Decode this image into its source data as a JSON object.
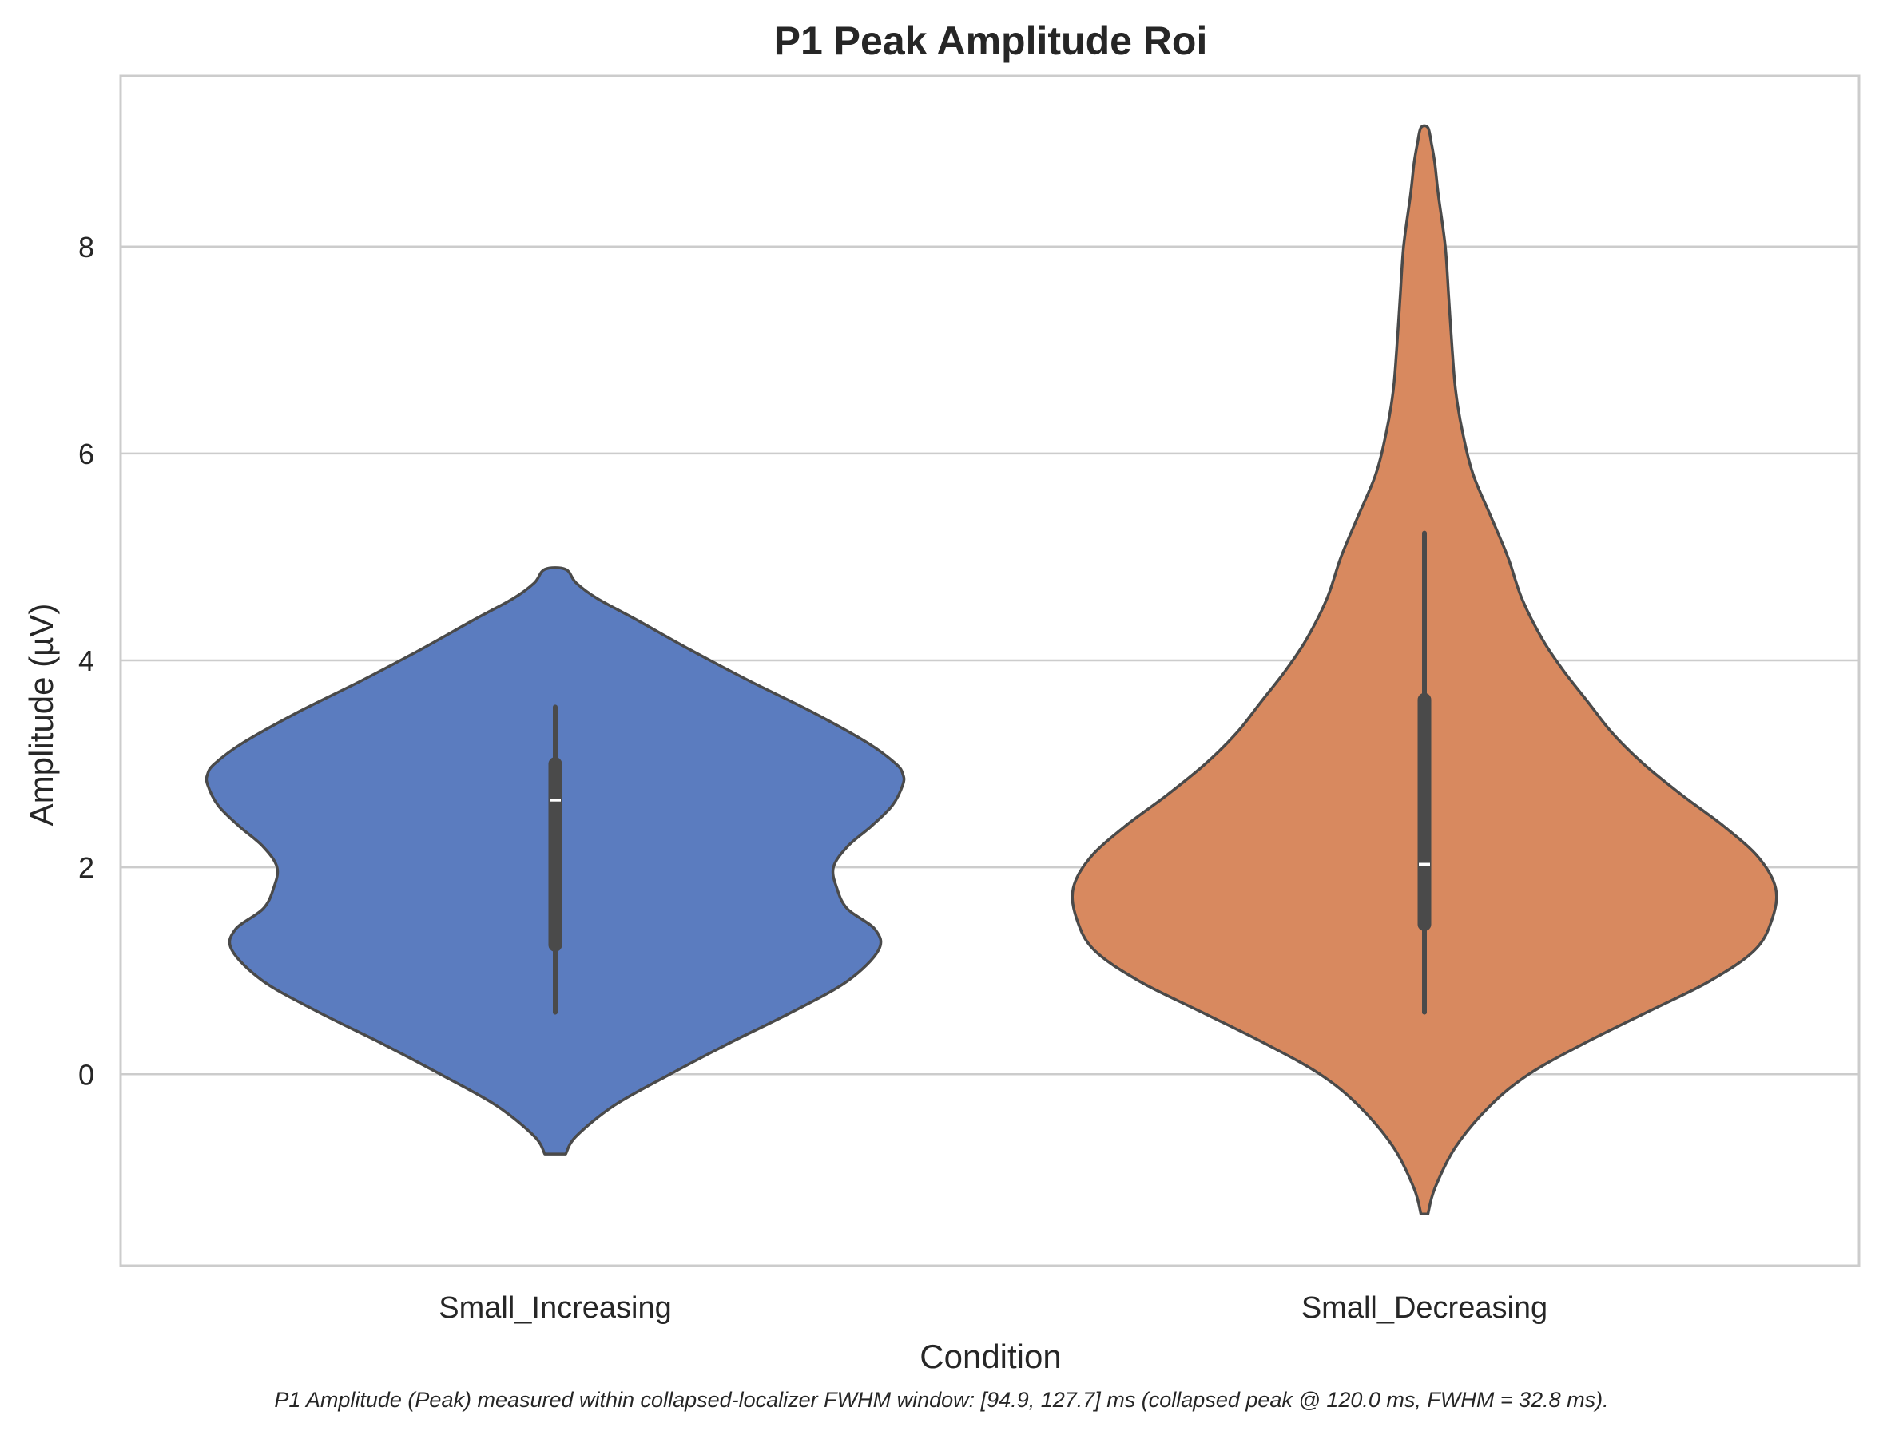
{
  "chart_data": {
    "type": "violin",
    "title": "P1 Peak Amplitude Roi",
    "xlabel": "Condition",
    "ylabel": "Amplitude (µV)",
    "caption": "P1 Amplitude (Peak) measured within collapsed-localizer FWHM window: [94.9, 127.7] ms (collapsed peak @ 120.0 ms, FWHM = 32.8 ms).",
    "ylim": [
      -1.85,
      9.65
    ],
    "yticks": [
      0,
      2,
      4,
      6,
      8
    ],
    "ytick_labels": [
      "0",
      "2",
      "4",
      "6",
      "8"
    ],
    "grid": true,
    "categories": [
      "Small_Increasing",
      "Small_Decreasing"
    ],
    "series": [
      {
        "name": "Small_Increasing",
        "color": "#5b7cbf",
        "median": 2.65,
        "q1": 1.25,
        "q3": 3.0,
        "whisker_low": 0.6,
        "whisker_high": 3.55,
        "density": {
          "y": [
            -0.77,
            -0.6,
            -0.3,
            0.0,
            0.3,
            0.6,
            0.9,
            1.2,
            1.4,
            1.6,
            1.8,
            2.0,
            2.2,
            2.4,
            2.6,
            2.8,
            2.9,
            3.0,
            3.2,
            3.5,
            3.8,
            4.1,
            4.4,
            4.6,
            4.75,
            4.88
          ],
          "width": [
            0.03,
            0.06,
            0.17,
            0.33,
            0.5,
            0.68,
            0.84,
            0.93,
            0.92,
            0.84,
            0.81,
            0.8,
            0.84,
            0.91,
            0.97,
            1.0,
            1.0,
            0.98,
            0.9,
            0.74,
            0.56,
            0.39,
            0.23,
            0.12,
            0.06,
            0.03
          ]
        }
      },
      {
        "name": "Small_Decreasing",
        "color": "#d8895f",
        "median": 2.03,
        "q1": 1.45,
        "q3": 3.62,
        "whisker_low": 0.6,
        "whisker_high": 5.23,
        "density": {
          "y": [
            -1.35,
            -1.1,
            -0.7,
            -0.3,
            0.0,
            0.3,
            0.6,
            0.9,
            1.2,
            1.5,
            1.8,
            2.1,
            2.4,
            2.7,
            3.0,
            3.3,
            3.6,
            3.9,
            4.2,
            4.6,
            5.0,
            5.4,
            5.8,
            6.2,
            6.6,
            7.0,
            7.5,
            8.0,
            8.5,
            8.8,
            9.0,
            9.15
          ],
          "width": [
            0.01,
            0.03,
            0.09,
            0.19,
            0.3,
            0.46,
            0.64,
            0.82,
            0.95,
            1.0,
            1.01,
            0.96,
            0.86,
            0.74,
            0.63,
            0.54,
            0.47,
            0.4,
            0.34,
            0.28,
            0.24,
            0.19,
            0.14,
            0.11,
            0.09,
            0.08,
            0.07,
            0.06,
            0.04,
            0.03,
            0.02,
            0.01
          ]
        }
      }
    ]
  }
}
